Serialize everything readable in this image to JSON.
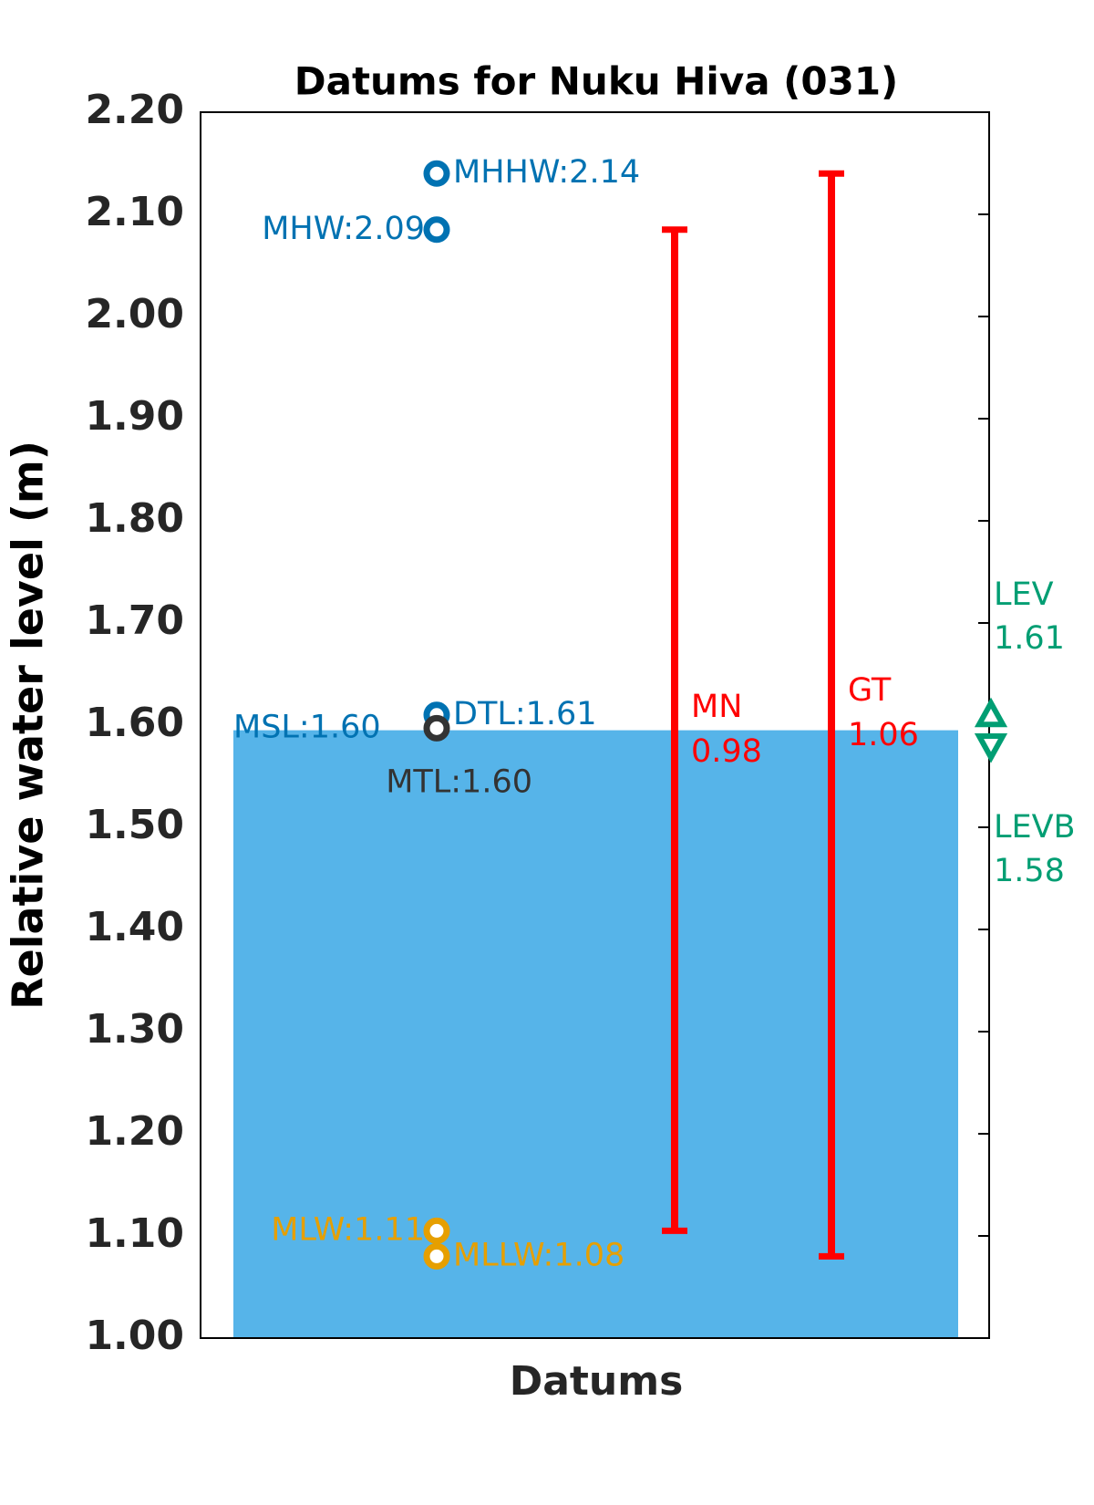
{
  "chart_data": {
    "type": "datum",
    "title": "Datums for Nuku Hiva (031)",
    "ylabel": "Relative water level (m)",
    "xlabel": "Datums",
    "ylim": [
      1.0,
      2.2
    ],
    "yticks": [
      {
        "value": 1.0,
        "label": "1.00"
      },
      {
        "value": 1.1,
        "label": "1.10"
      },
      {
        "value": 1.2,
        "label": "1.20"
      },
      {
        "value": 1.3,
        "label": "1.30"
      },
      {
        "value": 1.4,
        "label": "1.40"
      },
      {
        "value": 1.5,
        "label": "1.50"
      },
      {
        "value": 1.6,
        "label": "1.60"
      },
      {
        "value": 1.7,
        "label": "1.70"
      },
      {
        "value": 1.8,
        "label": "1.80"
      },
      {
        "value": 1.9,
        "label": "1.90"
      },
      {
        "value": 2.0,
        "label": "2.00"
      },
      {
        "value": 2.1,
        "label": "2.10"
      },
      {
        "value": 2.2,
        "label": "2.20"
      }
    ],
    "grid": false,
    "bar": {
      "label": "MSL:1.60",
      "value": 1.595,
      "color": "#56b4e9"
    },
    "points": [
      {
        "label": "MHHW:2.14",
        "value": 2.14,
        "color": "#0072b2"
      },
      {
        "label": "MHW:2.09",
        "value": 2.085,
        "color": "#0072b2"
      },
      {
        "label": "DTL:1.61",
        "value": 1.61,
        "color": "#0072b2"
      },
      {
        "label": "MTL:1.60",
        "value": 1.597,
        "color": "#333333"
      },
      {
        "label": "MLW:1.11",
        "value": 1.105,
        "color": "#e69f00"
      },
      {
        "label": "MLLW:1.08",
        "value": 1.08,
        "color": "#e69f00"
      }
    ],
    "ranges": [
      {
        "name": "MN",
        "label": "0.98",
        "low": 1.105,
        "high": 2.085,
        "color": "#ff0000"
      },
      {
        "name": "GT",
        "label": "1.06",
        "low": 1.08,
        "high": 2.14,
        "color": "#ff0000"
      }
    ],
    "extremes": [
      {
        "name": "LEV",
        "label": "1.61",
        "value": 1.61,
        "color": "#009e73",
        "marker": "up"
      },
      {
        "name": "LEVB",
        "label": "1.58",
        "value": 1.58,
        "color": "#009e73",
        "marker": "down"
      }
    ]
  }
}
